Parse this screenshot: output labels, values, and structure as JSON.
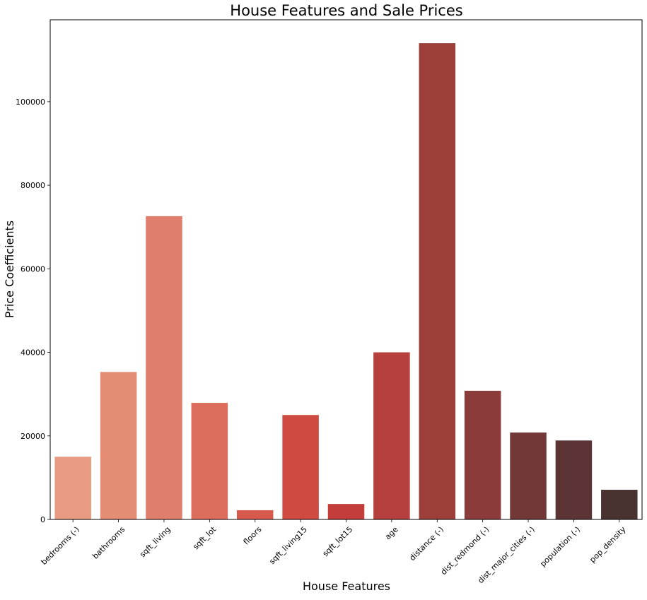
{
  "chart_data": {
    "type": "bar",
    "title": "House Features and Sale Prices",
    "xlabel": "House Features",
    "ylabel": "Price Coefficients",
    "categories": [
      "bedrooms (-)",
      "bathrooms",
      "sqft_living",
      "sqft_lot",
      "floors",
      "sqft_living15",
      "sqft_lot15",
      "age",
      "distance (-)",
      "dist_redmond (-)",
      "dist_major_cities (-)",
      "population (-)",
      "pop_density"
    ],
    "values": [
      15000,
      35300,
      72600,
      27900,
      2200,
      25000,
      3700,
      40000,
      114000,
      30800,
      20800,
      18900,
      7100
    ],
    "colors": [
      "#e89a82",
      "#e58c75",
      "#df7e6c",
      "#dc6c5c",
      "#d85a4f",
      "#cf4b42",
      "#c43d3a",
      "#b5403d",
      "#9c3f38",
      "#8a3b3a",
      "#723837",
      "#5c3435",
      "#493331"
    ],
    "ylim": [
      0,
      119600
    ],
    "yticks": [
      0,
      20000,
      40000,
      60000,
      80000,
      100000
    ],
    "ytick_labels": [
      "0",
      "20000",
      "40000",
      "60000",
      "80000",
      "100000"
    ],
    "grid": false,
    "legend": "none"
  }
}
